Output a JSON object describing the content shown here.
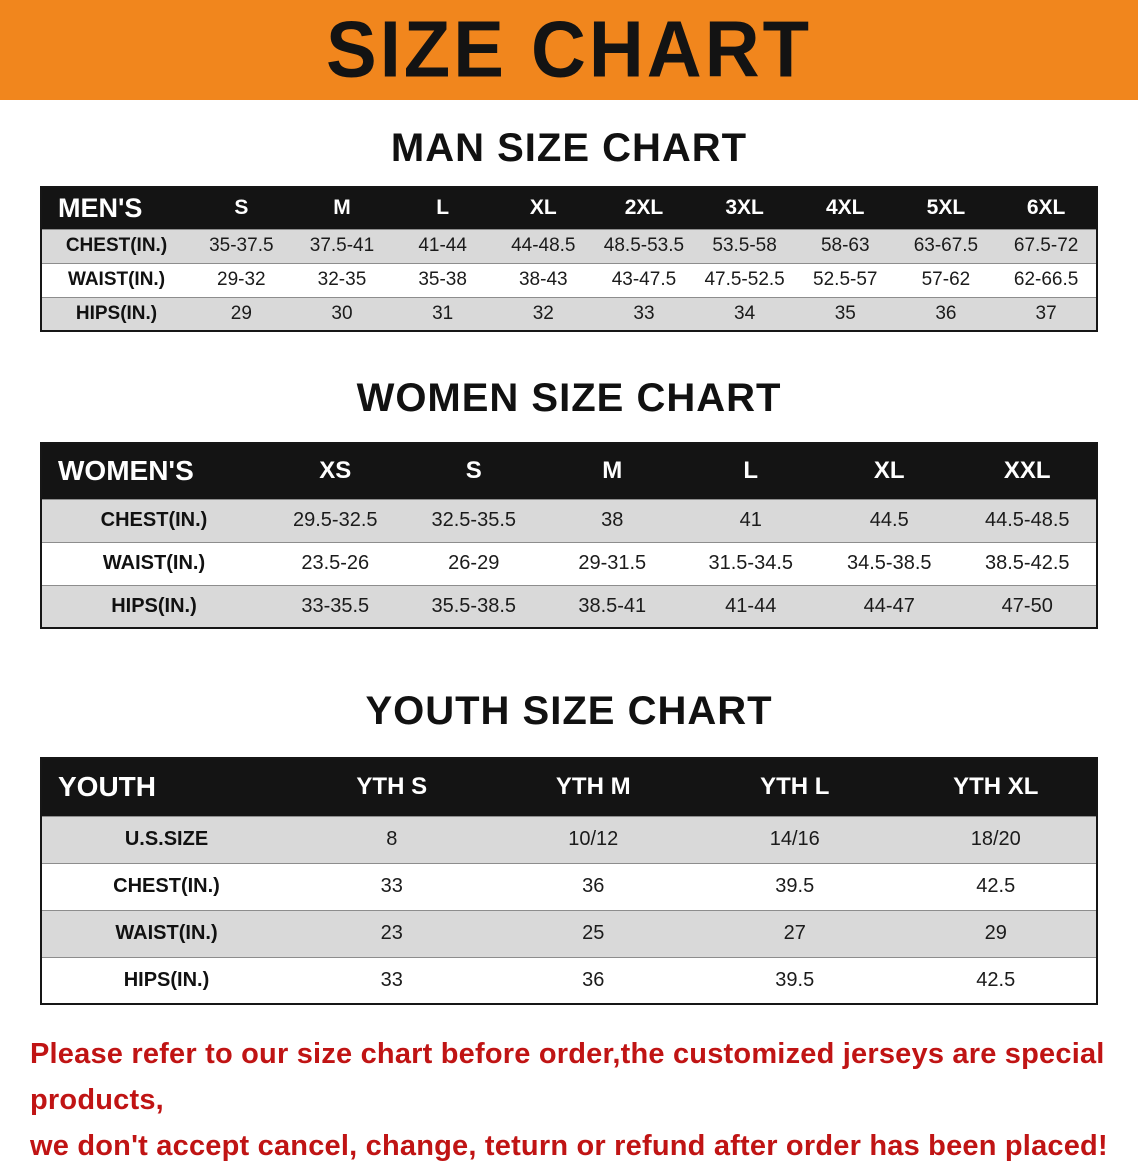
{
  "banner": {
    "title": "SIZE CHART"
  },
  "colors": {
    "banner_bg": "#f1861d",
    "header_bg": "#141414",
    "row_alt_bg": "#d9d9d9",
    "footer_text": "#c01414"
  },
  "sections": [
    {
      "id": "mens",
      "title": "MAN SIZE CHART",
      "corner_label": "MEN'S",
      "columns": [
        "S",
        "M",
        "L",
        "XL",
        "2XL",
        "3XL",
        "4XL",
        "5XL",
        "6XL"
      ],
      "rows": [
        {
          "label": "CHEST(IN.)",
          "values": [
            "35-37.5",
            "37.5-41",
            "41-44",
            "44-48.5",
            "48.5-53.5",
            "53.5-58",
            "58-63",
            "63-67.5",
            "67.5-72"
          ]
        },
        {
          "label": "WAIST(IN.)",
          "values": [
            "29-32",
            "32-35",
            "35-38",
            "38-43",
            "43-47.5",
            "47.5-52.5",
            "52.5-57",
            "57-62",
            "62-66.5"
          ]
        },
        {
          "label": "HIPS(IN.)",
          "values": [
            "29",
            "30",
            "31",
            "32",
            "33",
            "34",
            "35",
            "36",
            "37"
          ]
        }
      ]
    },
    {
      "id": "womens",
      "title": "WOMEN SIZE CHART",
      "corner_label": "WOMEN'S",
      "columns": [
        "XS",
        "S",
        "M",
        "L",
        "XL",
        "XXL"
      ],
      "rows": [
        {
          "label": "CHEST(IN.)",
          "values": [
            "29.5-32.5",
            "32.5-35.5",
            "38",
            "41",
            "44.5",
            "44.5-48.5"
          ]
        },
        {
          "label": "WAIST(IN.)",
          "values": [
            "23.5-26",
            "26-29",
            "29-31.5",
            "31.5-34.5",
            "34.5-38.5",
            "38.5-42.5"
          ]
        },
        {
          "label": "HIPS(IN.)",
          "values": [
            "33-35.5",
            "35.5-38.5",
            "38.5-41",
            "41-44",
            "44-47",
            "47-50"
          ]
        }
      ]
    },
    {
      "id": "youth",
      "title": "YOUTH SIZE CHART",
      "corner_label": "YOUTH",
      "columns": [
        "YTH S",
        "YTH M",
        "YTH L",
        "YTH XL"
      ],
      "rows": [
        {
          "label": "U.S.SIZE",
          "values": [
            "8",
            "10/12",
            "14/16",
            "18/20"
          ]
        },
        {
          "label": "CHEST(IN.)",
          "values": [
            "33",
            "36",
            "39.5",
            "42.5"
          ]
        },
        {
          "label": "WAIST(IN.)",
          "values": [
            "23",
            "25",
            "27",
            "29"
          ]
        },
        {
          "label": "HIPS(IN.)",
          "values": [
            "33",
            "36",
            "39.5",
            "42.5"
          ]
        }
      ]
    }
  ],
  "footer": {
    "line1": "Please refer to our size chart before order,the customized jerseys are special products,",
    "line2": "we don't accept cancel, change, teturn or refund after order has been placed!"
  }
}
